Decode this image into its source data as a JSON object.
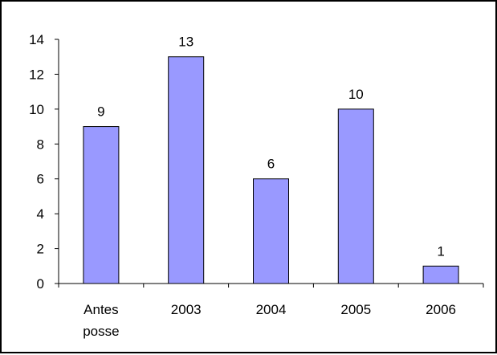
{
  "chart_data": {
    "type": "bar",
    "title": "",
    "xlabel": "",
    "ylabel": "",
    "categories": [
      [
        "Antes",
        "posse"
      ],
      [
        "2003"
      ],
      [
        "2004"
      ],
      [
        "2005"
      ],
      [
        "2006"
      ]
    ],
    "values": [
      9,
      13,
      6,
      10,
      1
    ],
    "data_labels": [
      "9",
      "13",
      "6",
      "10",
      "1"
    ],
    "ylim": [
      0,
      14
    ],
    "yticks": [
      "0",
      "2",
      "4",
      "6",
      "8",
      "10",
      "12",
      "14"
    ],
    "grid": false,
    "legend": "none",
    "bar_color": "#9999ff",
    "bar_edge_color": "#000000"
  }
}
